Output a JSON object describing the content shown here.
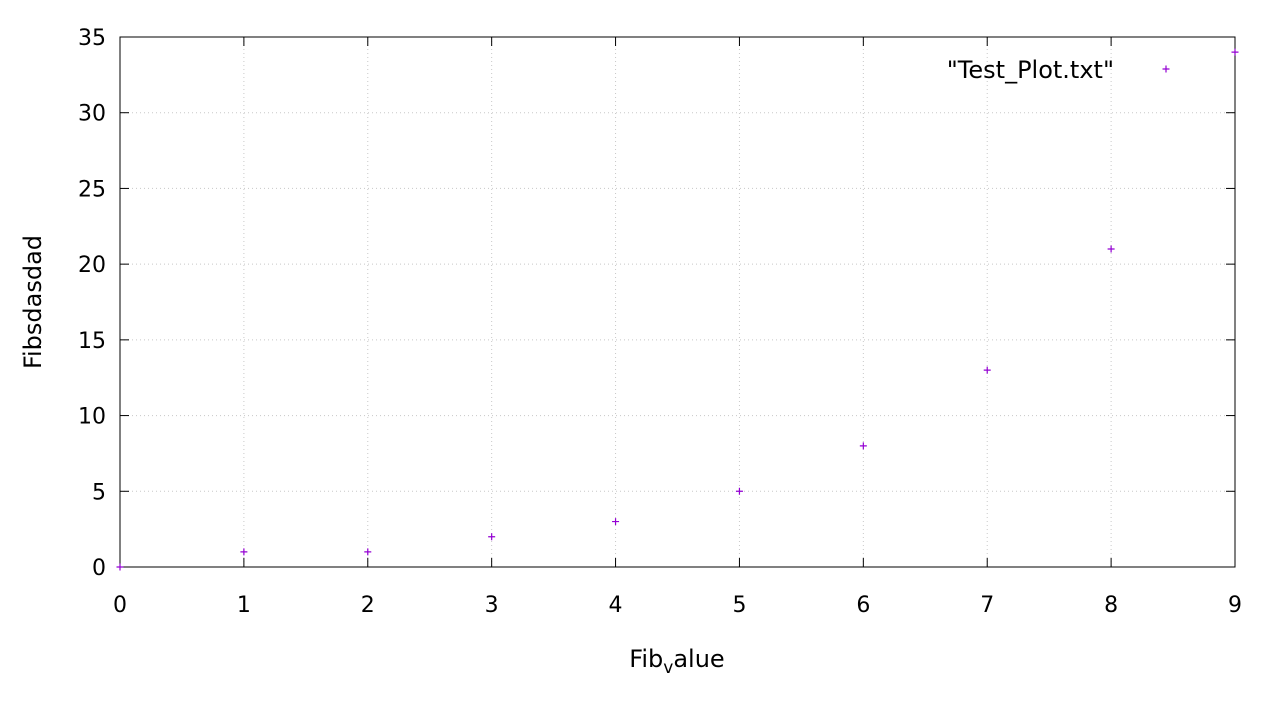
{
  "chart_data": {
    "type": "scatter",
    "title": "",
    "xlabel": "Fib_value",
    "xlabel_parts": {
      "main": "Fib",
      "sub": "v",
      "rest": "alue"
    },
    "ylabel": "Fibsdasdad",
    "xlim": [
      0,
      9
    ],
    "ylim": [
      0,
      35
    ],
    "xticks": [
      0,
      1,
      2,
      3,
      4,
      5,
      6,
      7,
      8,
      9
    ],
    "yticks": [
      0,
      5,
      10,
      15,
      20,
      25,
      30,
      35
    ],
    "grid": true,
    "legend_position": "top-right",
    "marker": "plus",
    "series": [
      {
        "name": "\"Test_Plot.txt\"",
        "color": "#9400d3",
        "x": [
          0,
          1,
          2,
          3,
          4,
          5,
          6,
          7,
          8,
          9
        ],
        "y": [
          0,
          1,
          1,
          2,
          3,
          5,
          8,
          13,
          21,
          34
        ]
      }
    ]
  }
}
